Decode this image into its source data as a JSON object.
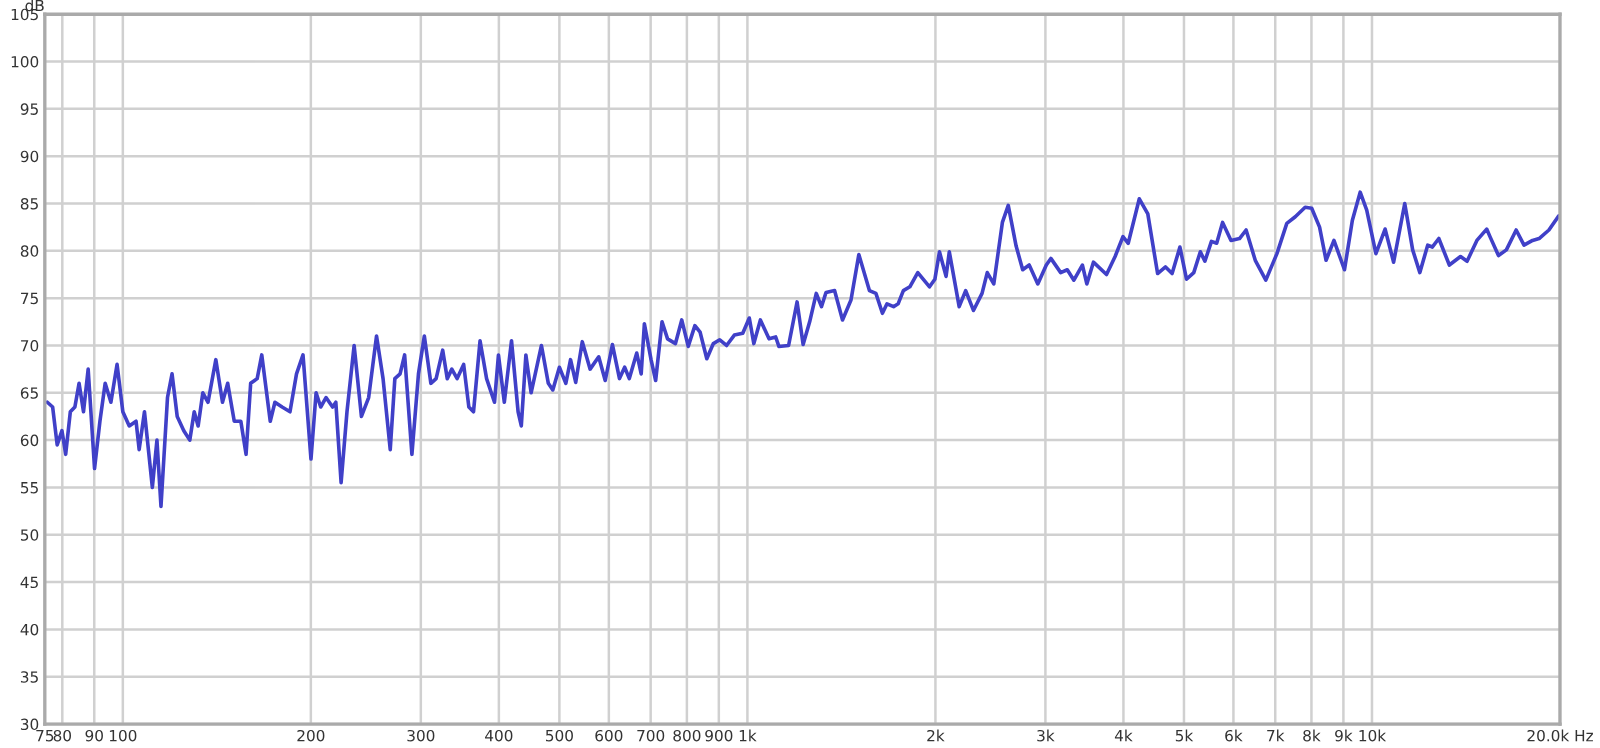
{
  "chart_data": {
    "type": "line",
    "ylabel": "dB",
    "log": "x",
    "grid": true,
    "marker": "none",
    "line_style": "solid",
    "xlim": [
      75,
      20000
    ],
    "ylim": [
      30,
      105
    ],
    "xticks": [
      75,
      80,
      90,
      100,
      200,
      300,
      400,
      500,
      600,
      700,
      800,
      900,
      {
        "value": 1000,
        "label": "1k"
      },
      {
        "value": 2000,
        "label": "2k"
      },
      {
        "value": 3000,
        "label": "3k"
      },
      {
        "value": 4000,
        "label": "4k"
      },
      {
        "value": 5000,
        "label": "5k"
      },
      {
        "value": 6000,
        "label": "6k"
      },
      {
        "value": 7000,
        "label": "7k"
      },
      {
        "value": 8000,
        "label": "8k"
      },
      {
        "value": 9000,
        "label": "9k"
      },
      {
        "value": 10000,
        "label": "10k"
      },
      {
        "value": 20000,
        "label": "20.0k Hz"
      }
    ],
    "yticks": [
      30,
      35,
      40,
      45,
      50,
      55,
      60,
      65,
      70,
      75,
      80,
      85,
      90,
      95,
      100,
      105
    ],
    "series": [
      {
        "color": "#4040c8",
        "x": [
          75.7,
          77.2,
          78.5,
          79.9,
          81.0,
          82.4,
          83.8,
          85.1,
          86.5,
          88.0,
          90.1,
          91.9,
          93.7,
          95.7,
          97.9,
          100,
          102.4,
          105.0,
          106.2,
          108.3,
          111.5,
          113.4,
          115.1,
          117.9,
          119.9,
          122.2,
          125.2,
          128.0,
          130.1,
          132.0,
          134.3,
          136.9,
          140.9,
          144.4,
          147.2,
          150.8,
          154.5,
          157.5,
          160.2,
          164.1,
          166.9,
          172.2,
          175.2,
          179.9,
          185.2,
          189.7,
          194.3,
          200.1,
          203.9,
          207.4,
          211.5,
          216.7,
          219.3,
          223.6,
          228.5,
          234.6,
          241.0,
          247.5,
          254.8,
          261.0,
          268.0,
          272.6,
          277.9,
          282.6,
          290.3,
          297.4,
          303.9,
          311.3,
          317.4,
          325.2,
          330.7,
          336.3,
          343.0,
          351.3,
          358.1,
          364.3,
          373.2,
          382.3,
          393.6,
          399.4,
          408.1,
          419.1,
          429.4,
          434.5,
          441.9,
          450.5,
          468,
          480,
          488,
          500,
          512,
          521,
          531,
          544,
          560,
          578,
          592,
          608,
          624,
          636,
          647,
          665,
          676,
          684,
          701,
          713,
          730,
          745,
          767,
          785,
          804,
          824,
          840,
          861,
          882,
          903,
          926,
          953,
          983,
          1007,
          1024,
          1049,
          1083,
          1110,
          1123,
          1164,
          1201,
          1228,
          1258,
          1289,
          1314,
          1336,
          1379,
          1420,
          1465,
          1508,
          1568,
          1606,
          1645,
          1673,
          1714,
          1743,
          1777,
          1820,
          1874,
          1957,
          1996,
          2030,
          2080,
          2105,
          2183,
          2236,
          2301,
          2375,
          2421,
          2480,
          2560,
          2616,
          2693,
          2759,
          2826,
          2917,
          3010,
          3061,
          3174,
          3252,
          3332,
          3438,
          3495,
          3581,
          3758,
          3879,
          3993,
          4071,
          4241,
          4376,
          4537,
          4671,
          4786,
          4926,
          5047,
          5184,
          5311,
          5401,
          5533,
          5641,
          5765,
          5947,
          6137,
          6287,
          6503,
          6761,
          7044,
          7305,
          7537,
          7816,
          8007,
          8243,
          8443,
          8692,
          9036,
          9301,
          9574,
          9808,
          10146,
          10495,
          10830,
          11284,
          11618,
          11930,
          12280,
          12490,
          12794,
          13300,
          13860,
          14199,
          14722,
          15264,
          15450,
          15942,
          16412,
          17016,
          17515,
          18076,
          18517,
          19199,
          19910
        ],
        "values": [
          64,
          63.5,
          59.5,
          61,
          58.5,
          63,
          63.5,
          66,
          63,
          67.5,
          57,
          62,
          66,
          64,
          68,
          63,
          61.5,
          62,
          59,
          63,
          55,
          60,
          53,
          64.5,
          67,
          62.5,
          61,
          60,
          63,
          61.5,
          65,
          64,
          68.5,
          64,
          66,
          62,
          62,
          58.5,
          66,
          66.5,
          69,
          62,
          64,
          63.5,
          63,
          67,
          69,
          58,
          65,
          63.5,
          64.5,
          63.5,
          64,
          55.5,
          63,
          70,
          62.5,
          64.5,
          71,
          66.5,
          59,
          66.5,
          67,
          69,
          58.5,
          67,
          71,
          66,
          66.5,
          69.5,
          66.5,
          67.5,
          66.5,
          68,
          63.5,
          63,
          70.5,
          66.5,
          64,
          69,
          64,
          70.5,
          63,
          61.5,
          69,
          65,
          70,
          66,
          65.3,
          67.7,
          66,
          68.5,
          66.1,
          70.4,
          67.5,
          68.8,
          66.3,
          70.1,
          66.5,
          67.7,
          66.5,
          69.2,
          67,
          72.3,
          68.5,
          66.3,
          72.5,
          70.7,
          70.2,
          72.7,
          69.9,
          72.1,
          71.4,
          68.6,
          70.2,
          70.6,
          70,
          71.1,
          71.3,
          72.9,
          70.2,
          72.7,
          70.7,
          70.9,
          69.9,
          70,
          74.6,
          70.1,
          72.5,
          75.5,
          74.1,
          75.6,
          75.8,
          72.7,
          74.8,
          79.6,
          75.8,
          75.5,
          73.4,
          74.4,
          74.1,
          74.4,
          75.8,
          76.2,
          77.7,
          76.2,
          77.0,
          79.9,
          77.3,
          79.9,
          74.1,
          75.8,
          73.7,
          75.5,
          77.7,
          76.5,
          83,
          84.8,
          80.5,
          78,
          78.5,
          76.5,
          78.5,
          79.2,
          77.7,
          78,
          76.9,
          78.5,
          76.5,
          78.8,
          77.5,
          79.4,
          81.5,
          80.8,
          85.5,
          83.9,
          77.6,
          78.3,
          77.6,
          80.4,
          77,
          77.7,
          79.9,
          78.9,
          81,
          80.8,
          83,
          81.1,
          81.3,
          82.2,
          79,
          76.9,
          79.7,
          82.9,
          83.6,
          84.6,
          84.5,
          82.5,
          79,
          81.1,
          78,
          83.2,
          86.2,
          84.3,
          79.7,
          82.3,
          78.8,
          85,
          80.1,
          77.7,
          80.6,
          80.4,
          81.3,
          78.5,
          79.4,
          78.9,
          81.1,
          82.3,
          81.5,
          79.5,
          80.1,
          82.2,
          80.6,
          81.1,
          81.3,
          82.2,
          83.7
        ]
      }
    ]
  }
}
